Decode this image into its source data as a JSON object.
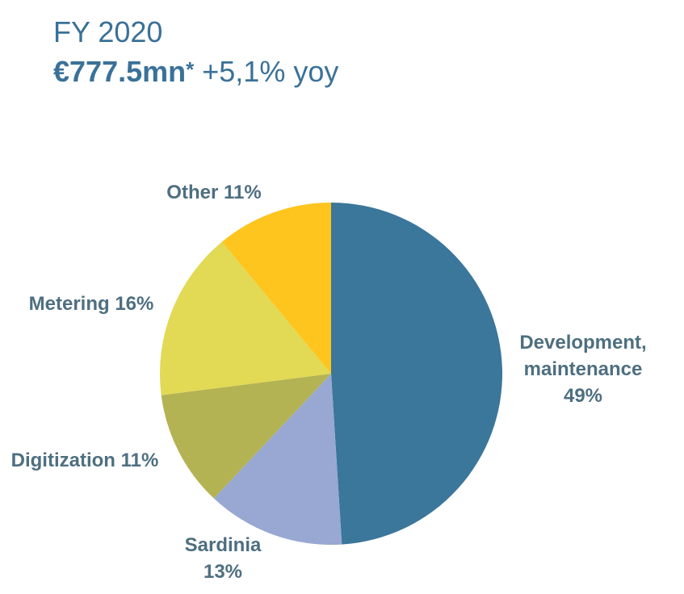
{
  "header": {
    "title": "FY 2020",
    "amount": "€777.5mn",
    "asterisk": "*",
    "growth": "+5,1% yoy"
  },
  "chart_data": {
    "type": "pie",
    "title": "FY 2020",
    "start": "12 o'clock",
    "direction": "clockwise",
    "slices": [
      {
        "label": "Development, maintenance",
        "label_lines": [
          "Development,",
          "maintenance",
          "49%"
        ],
        "value": 49,
        "color": "#3b769b"
      },
      {
        "label": "Sardinia",
        "label_lines": [
          "Sardinia",
          "13%"
        ],
        "value": 13,
        "color": "#98a8d3"
      },
      {
        "label": "Digitization",
        "label_lines": [
          "Digitization 11%"
        ],
        "value": 11,
        "color": "#b4b353"
      },
      {
        "label": "Metering",
        "label_lines": [
          "Metering 16%"
        ],
        "value": 16,
        "color": "#e2d955"
      },
      {
        "label": "Other",
        "label_lines": [
          "Other 11%"
        ],
        "value": 11,
        "color": "#fdc51e"
      }
    ]
  }
}
